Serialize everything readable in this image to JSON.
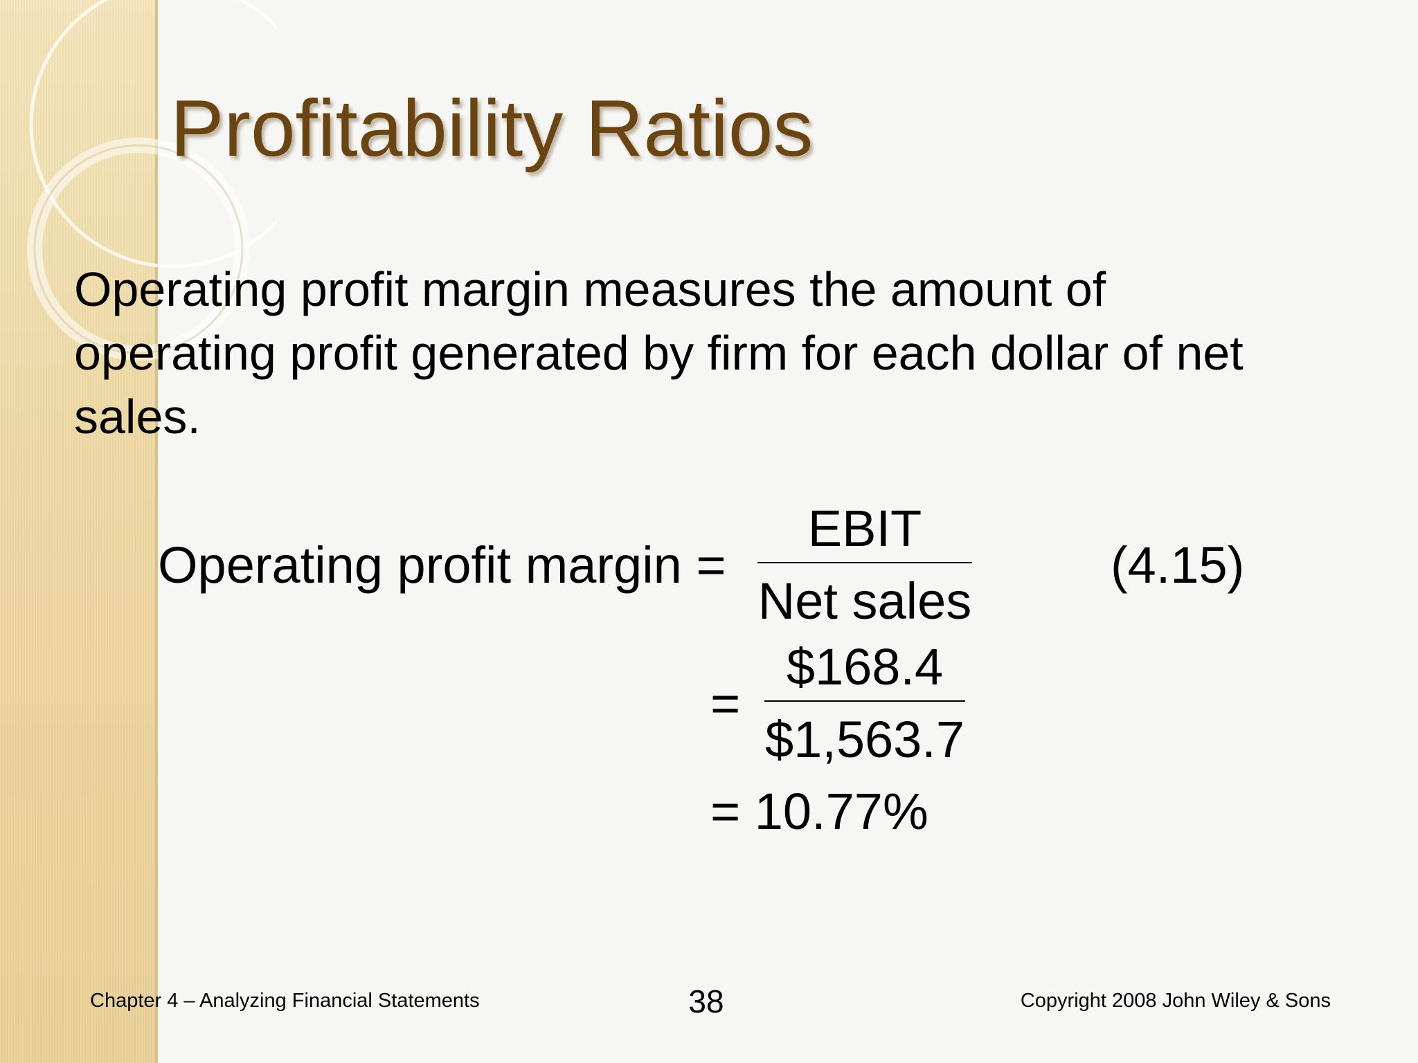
{
  "slide": {
    "title": "Profitability Ratios",
    "body": "Operating profit margin measures the amount of operating profit generated by firm for each dollar of net sales.",
    "formula": {
      "label": "Operating profit margin =",
      "numerator": "EBIT",
      "denominator": "Net sales",
      "number": "(4.15)",
      "step1_equals": "=",
      "step1_numerator": "$168.4",
      "step1_denominator": "$1,563.7",
      "result": "= 10.77%"
    },
    "footer": {
      "left": "Chapter 4 – Analyzing Financial Statements",
      "page": "38",
      "right": "Copyright 2008 John Wiley & Sons"
    }
  }
}
